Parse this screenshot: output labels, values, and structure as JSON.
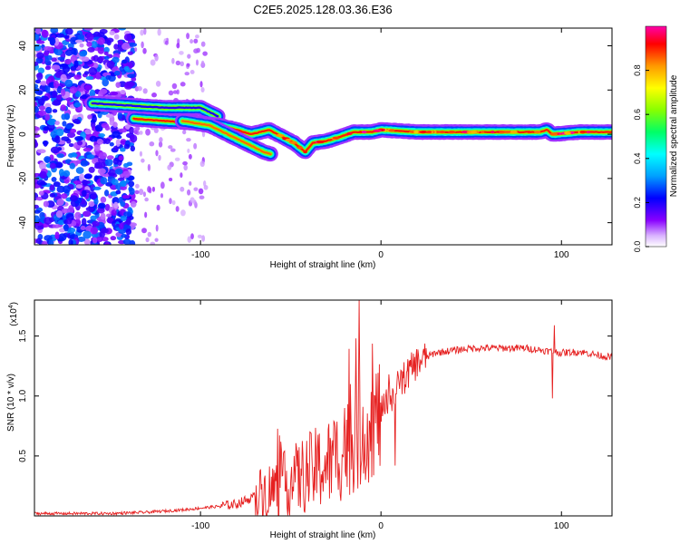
{
  "title": "C2E5.2025.128.03.36.E36",
  "chart_data": [
    {
      "type": "heatmap",
      "xlabel": "Height of straight line (km)",
      "ylabel": "Frequency (Hz)",
      "xlim": [
        -192,
        128
      ],
      "ylim": [
        -50,
        48
      ],
      "xticks": [
        -100,
        0,
        100
      ],
      "yticks": [
        -40,
        -20,
        0,
        20,
        40
      ],
      "colorbar": {
        "label": "Normalized spectral amplitude",
        "range": [
          0,
          1
        ],
        "ticks": [
          0.0,
          0.2,
          0.4,
          0.6,
          0.8
        ],
        "colormap": [
          "#ffffff",
          "#8800ff",
          "#0000ff",
          "#00c0ff",
          "#00ff80",
          "#80ff00",
          "#ffff00",
          "#ff8000",
          "#ff0000",
          "#ff00a0"
        ]
      },
      "features": {
        "noise_region_x": [
          -192,
          -137
        ],
        "noise_amplitude": 0.25,
        "ridge_main": [
          [
            -137,
            7
          ],
          [
            -120,
            6
          ],
          [
            -100,
            5
          ],
          [
            -90,
            4
          ],
          [
            -80,
            2
          ],
          [
            -72,
            0
          ],
          [
            -62,
            2
          ],
          [
            -55,
            -1
          ],
          [
            -48,
            -4
          ],
          [
            -42,
            -8
          ],
          [
            -38,
            -4
          ],
          [
            -30,
            -3
          ],
          [
            -22,
            -1
          ],
          [
            -15,
            1
          ],
          [
            -5,
            1
          ],
          [
            0,
            2
          ],
          [
            20,
            1
          ],
          [
            50,
            1
          ],
          [
            88,
            1
          ],
          [
            92,
            2
          ],
          [
            95,
            0
          ],
          [
            110,
            1
          ],
          [
            128,
            1
          ]
        ],
        "ridge_upper": [
          [
            -160,
            14
          ],
          [
            -120,
            12
          ],
          [
            -100,
            12
          ],
          [
            -90,
            8
          ]
        ],
        "ridge_branch": [
          [
            -110,
            6
          ],
          [
            -95,
            4
          ],
          [
            -85,
            0
          ],
          [
            -75,
            -4
          ],
          [
            -65,
            -8
          ],
          [
            -61,
            -9
          ]
        ]
      }
    },
    {
      "type": "line",
      "xlabel": "Height of straight line (km)",
      "ylabel": "SNR (10 * v/v)",
      "yscale_label": "(x10",
      "yscale_exp": "4",
      "xlim": [
        -192,
        128
      ],
      "ylim": [
        0,
        1.8
      ],
      "xticks": [
        -100,
        0,
        100
      ],
      "yticks": [
        0.5,
        1.0,
        1.5
      ],
      "color": "#e62020",
      "profile": [
        [
          -192,
          0.02
        ],
        [
          -150,
          0.02
        ],
        [
          -130,
          0.03
        ],
        [
          -110,
          0.05
        ],
        [
          -90,
          0.08
        ],
        [
          -80,
          0.1
        ],
        [
          -70,
          0.16
        ],
        [
          -60,
          0.22
        ],
        [
          -50,
          0.28
        ],
        [
          -40,
          0.36
        ],
        [
          -30,
          0.43
        ],
        [
          -20,
          0.55
        ],
        [
          -10,
          0.7
        ],
        [
          0,
          0.85
        ],
        [
          10,
          1.1
        ],
        [
          20,
          1.28
        ],
        [
          30,
          1.36
        ],
        [
          50,
          1.4
        ],
        [
          80,
          1.4
        ],
        [
          90,
          1.38
        ],
        [
          100,
          1.36
        ],
        [
          110,
          1.37
        ],
        [
          128,
          1.32
        ]
      ],
      "spikes": [
        [
          -12,
          1.8
        ],
        [
          -14,
          1.48
        ],
        [
          -17,
          1.1
        ],
        [
          -20,
          0.9
        ],
        [
          -55,
          0.55
        ],
        [
          -48,
          0.5
        ],
        [
          -28,
          0.62
        ],
        [
          8,
          0.42
        ],
        [
          95,
          0.98
        ],
        [
          96,
          1.59
        ]
      ]
    }
  ]
}
